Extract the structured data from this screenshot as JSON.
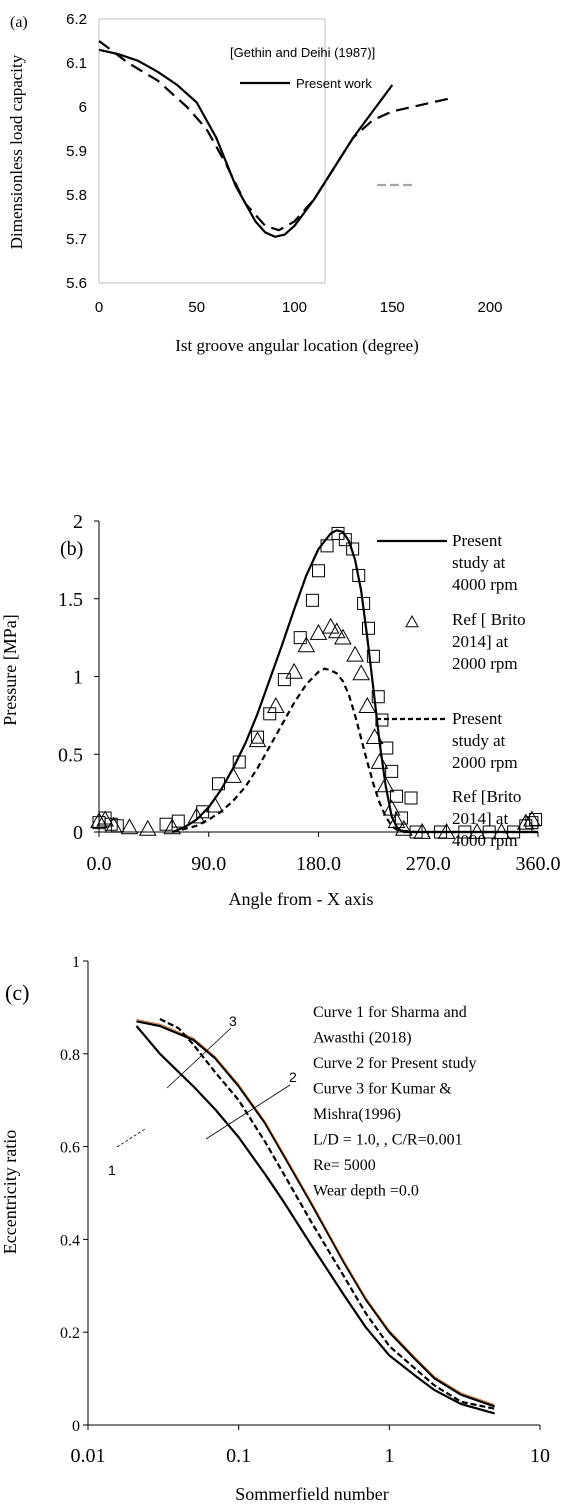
{
  "chart_data": [
    {
      "type": "line",
      "panel_label": "(a)",
      "xlabel": "Ist groove angular location (degree)",
      "ylabel": "Dimensionless load capacity",
      "xlim": [
        0,
        200
      ],
      "ylim": [
        5.6,
        6.2
      ],
      "x_ticks": [
        "0",
        "50",
        "100",
        "150",
        "200"
      ],
      "y_ticks": [
        "5.6",
        "5.7",
        "5.8",
        "5.9",
        "6",
        "6.1",
        "6.2"
      ],
      "legend": [
        "[Gethin and Deihi (1987)]",
        "Present work"
      ],
      "series": [
        {
          "name": "[Gethin and Deihi (1987)]",
          "style": "dashed",
          "x": [
            0,
            15,
            30,
            45,
            55,
            65,
            75,
            85,
            92,
            100,
            110,
            120,
            130,
            140,
            150,
            160,
            170,
            180
          ],
          "y": [
            6.15,
            6.1,
            6.06,
            6.0,
            5.95,
            5.87,
            5.78,
            5.73,
            5.72,
            5.74,
            5.79,
            5.86,
            5.93,
            5.97,
            5.99,
            6.0,
            6.01,
            6.02
          ]
        },
        {
          "name": "Present work",
          "style": "solid",
          "x": [
            0,
            10,
            20,
            30,
            40,
            50,
            60,
            70,
            80,
            85,
            90,
            95,
            100,
            110,
            120,
            130,
            140,
            150
          ],
          "y": [
            6.13,
            6.12,
            6.105,
            6.08,
            6.05,
            6.01,
            5.93,
            5.82,
            5.74,
            5.715,
            5.705,
            5.71,
            5.73,
            5.79,
            5.86,
            5.93,
            5.99,
            6.05
          ]
        }
      ]
    },
    {
      "type": "line",
      "panel_label": "(b)",
      "xlabel": "Angle from  -  X  axis",
      "ylabel": "Pressure [MPa]",
      "xlim": [
        0,
        360
      ],
      "ylim": [
        0,
        2
      ],
      "x_ticks": [
        "0.0",
        "90.0",
        "180.0",
        "270.0",
        "360.0"
      ],
      "y_ticks": [
        "0",
        "0.5",
        "1",
        "1.5",
        "2"
      ],
      "legend": [
        [
          "Present",
          "study at",
          "4000 rpm"
        ],
        [
          "Ref [ Brito",
          "2014] at",
          "2000 rpm"
        ],
        [
          "Present",
          "study at",
          "2000 rpm"
        ],
        [
          "Ref [Brito",
          "2014] at",
          "4000 rpm"
        ]
      ],
      "series": [
        {
          "name": "Present study at 4000 rpm",
          "style": "solid",
          "x": [
            60,
            70,
            80,
            90,
            100,
            110,
            120,
            130,
            140,
            150,
            160,
            170,
            180,
            190,
            195,
            200,
            205,
            210,
            215,
            220,
            225,
            230,
            235,
            240,
            245,
            250,
            260,
            360
          ],
          "y": [
            0.0,
            0.03,
            0.08,
            0.16,
            0.27,
            0.41,
            0.57,
            0.76,
            0.98,
            1.2,
            1.43,
            1.65,
            1.82,
            1.92,
            1.94,
            1.93,
            1.87,
            1.75,
            1.55,
            1.25,
            0.92,
            0.58,
            0.3,
            0.1,
            0.02,
            0.0,
            0.0,
            0.0
          ]
        },
        {
          "name": "Ref [ Brito 2014] at 2000 rpm",
          "style": "triangle",
          "x": [
            0,
            5,
            12,
            25,
            40,
            60,
            80,
            95,
            110,
            130,
            145,
            160,
            170,
            180,
            190,
            195,
            200,
            210,
            215,
            220,
            226,
            230,
            235,
            240,
            244,
            250,
            265,
            285,
            310,
            330,
            350,
            355
          ],
          "y": [
            0.07,
            0.08,
            0.04,
            0.03,
            0.02,
            0.03,
            0.1,
            0.17,
            0.36,
            0.59,
            0.81,
            1.03,
            1.2,
            1.28,
            1.32,
            1.29,
            1.25,
            1.14,
            1.02,
            0.81,
            0.61,
            0.45,
            0.3,
            0.15,
            0.07,
            0.02,
            0.0,
            0.0,
            0.0,
            0.0,
            0.06,
            0.08
          ]
        },
        {
          "name": "Present study at 2000 rpm",
          "style": "dashed",
          "x": [
            60,
            70,
            80,
            90,
            100,
            110,
            120,
            130,
            140,
            150,
            160,
            170,
            180,
            185,
            190,
            195,
            200,
            205,
            210,
            215,
            220,
            225,
            230,
            235,
            240,
            245,
            260,
            360
          ],
          "y": [
            0.0,
            0.02,
            0.04,
            0.08,
            0.13,
            0.2,
            0.29,
            0.41,
            0.55,
            0.69,
            0.83,
            0.95,
            1.03,
            1.05,
            1.04,
            1.02,
            0.97,
            0.88,
            0.75,
            0.6,
            0.45,
            0.31,
            0.19,
            0.1,
            0.04,
            0.01,
            0.0,
            0.0
          ]
        },
        {
          "name": "Ref [Brito 2014] at 4000 rpm",
          "style": "square",
          "x": [
            0,
            5,
            10,
            15,
            55,
            65,
            85,
            98,
            115,
            130,
            140,
            152,
            165,
            175,
            180,
            187,
            196,
            202,
            208,
            213,
            217,
            221,
            225,
            229,
            232,
            236,
            240,
            244,
            248,
            260,
            280,
            300,
            320,
            340,
            350,
            355,
            358
          ],
          "y": [
            0.06,
            0.09,
            0.05,
            0.04,
            0.05,
            0.07,
            0.13,
            0.31,
            0.45,
            0.61,
            0.76,
            0.98,
            1.25,
            1.49,
            1.68,
            1.84,
            1.92,
            1.88,
            1.82,
            1.65,
            1.47,
            1.31,
            1.13,
            0.87,
            0.72,
            0.54,
            0.39,
            0.23,
            0.09,
            0.0,
            0.0,
            0.0,
            0.0,
            0.0,
            0.04,
            0.06,
            0.08
          ]
        }
      ]
    },
    {
      "type": "line",
      "panel_label": "(c)",
      "xlabel": "Sommerfield number",
      "ylabel": "Eccentricity ratio",
      "xscale": "log",
      "xlim": [
        0.01,
        10
      ],
      "ylim": [
        0,
        1
      ],
      "x_ticks": [
        "0.01",
        "0.1",
        "1",
        "10"
      ],
      "y_ticks": [
        "0",
        "0.2",
        "0.4",
        "0.6",
        "0.8",
        "1"
      ],
      "annotations": [
        "Curve 1 for Sharma and",
        "Awasthi  (2018)",
        "Curve 2 for Present study",
        "Curve 3 for Kumar &",
        "Mishra(1996)",
        "L/D = 1.0, , C/R=0.001",
        "Re= 5000",
        "Wear depth =0.0"
      ],
      "curve_labels": [
        "1",
        "2",
        "3"
      ],
      "series": [
        {
          "name": "1",
          "style": "solid",
          "x": [
            0.021,
            0.03,
            0.05,
            0.07,
            0.1,
            0.15,
            0.2,
            0.3,
            0.5,
            0.7,
            1,
            1.5,
            2,
            3,
            5
          ],
          "y": [
            0.86,
            0.8,
            0.73,
            0.68,
            0.62,
            0.54,
            0.48,
            0.39,
            0.28,
            0.21,
            0.15,
            0.105,
            0.075,
            0.045,
            0.025
          ]
        },
        {
          "name": "2",
          "style": "solid",
          "x": [
            0.021,
            0.03,
            0.05,
            0.07,
            0.1,
            0.15,
            0.2,
            0.3,
            0.5,
            0.7,
            1,
            1.5,
            2,
            3,
            5
          ],
          "y": [
            0.87,
            0.86,
            0.83,
            0.79,
            0.73,
            0.65,
            0.58,
            0.48,
            0.35,
            0.27,
            0.2,
            0.14,
            0.1,
            0.065,
            0.04
          ]
        },
        {
          "name": "3",
          "style": "dashed",
          "x": [
            0.03,
            0.04,
            0.05,
            0.07,
            0.1,
            0.15,
            0.2,
            0.3,
            0.5,
            0.7,
            1,
            1.5,
            2,
            3,
            5
          ],
          "y": [
            0.875,
            0.855,
            0.82,
            0.76,
            0.7,
            0.61,
            0.54,
            0.44,
            0.32,
            0.24,
            0.17,
            0.12,
            0.085,
            0.05,
            0.035
          ]
        }
      ]
    }
  ]
}
